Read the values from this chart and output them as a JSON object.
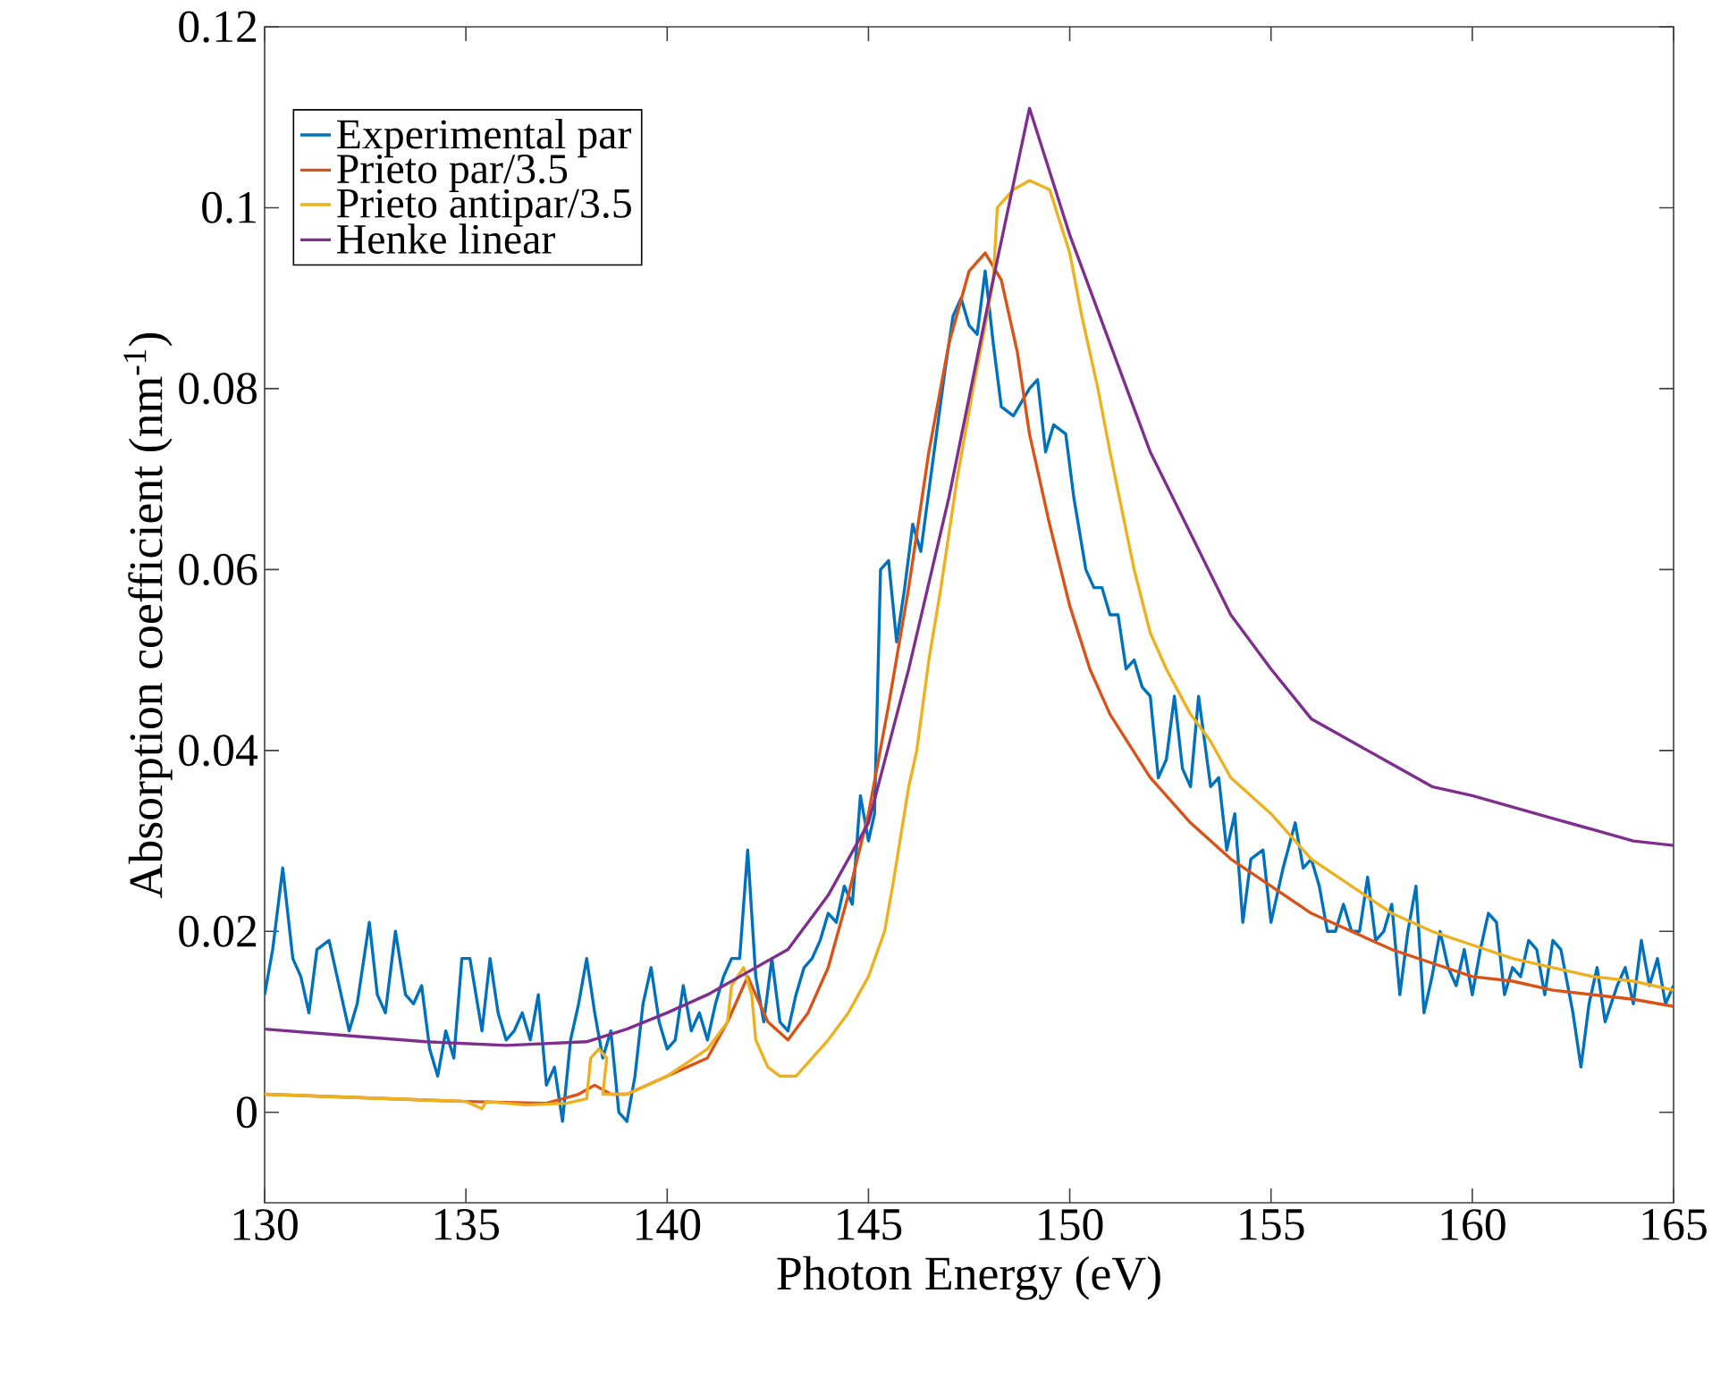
{
  "chart_data": {
    "type": "line",
    "xlabel": "Photon Energy (eV)",
    "ylabel": "Absorption coefficient (nm$^{-1}$)",
    "xlim": [
      130,
      165
    ],
    "ylim": [
      -0.01,
      0.12
    ],
    "xticks": [
      130,
      135,
      140,
      145,
      150,
      155,
      160,
      165
    ],
    "yticks": [
      0,
      0.02,
      0.04,
      0.06,
      0.08,
      0.1,
      0.12
    ],
    "legend": "top left",
    "grid": false,
    "marker": "none",
    "line_style": "solid",
    "series": [
      {
        "name": "Experimental par",
        "color": "#0072bd",
        "x": [
          130.0,
          130.2,
          130.45,
          130.7,
          130.9,
          131.1,
          131.3,
          131.6,
          131.9,
          132.1,
          132.3,
          132.6,
          132.8,
          133.0,
          133.25,
          133.5,
          133.7,
          133.9,
          134.1,
          134.3,
          134.5,
          134.7,
          134.9,
          135.1,
          135.4,
          135.6,
          135.8,
          136.0,
          136.2,
          136.4,
          136.6,
          136.8,
          137.0,
          137.2,
          137.4,
          137.6,
          137.8,
          138.0,
          138.2,
          138.4,
          138.6,
          138.8,
          139.0,
          139.2,
          139.4,
          139.6,
          139.8,
          140.0,
          140.2,
          140.4,
          140.6,
          140.8,
          141.0,
          141.2,
          141.4,
          141.6,
          141.8,
          142.0,
          142.2,
          142.4,
          142.6,
          142.8,
          143.0,
          143.2,
          143.4,
          143.6,
          143.8,
          144.0,
          144.2,
          144.4,
          144.6,
          144.8,
          145.0,
          145.15,
          145.3,
          145.5,
          145.7,
          145.9,
          146.1,
          146.3,
          146.6,
          146.9,
          147.1,
          147.3,
          147.5,
          147.7,
          147.9,
          148.1,
          148.3,
          148.6,
          149.0,
          149.2,
          149.4,
          149.6,
          149.9,
          150.1,
          150.4,
          150.6,
          150.8,
          151.0,
          151.2,
          151.4,
          151.6,
          151.8,
          152.0,
          152.2,
          152.4,
          152.6,
          152.8,
          153.0,
          153.2,
          153.5,
          153.7,
          153.9,
          154.1,
          154.3,
          154.5,
          154.8,
          155.0,
          155.3,
          155.6,
          155.8,
          156.0,
          156.2,
          156.4,
          156.6,
          156.8,
          157.0,
          157.2,
          157.4,
          157.6,
          157.8,
          158.0,
          158.2,
          158.4,
          158.6,
          158.8,
          159.0,
          159.2,
          159.4,
          159.6,
          159.8,
          160.0,
          160.2,
          160.4,
          160.6,
          160.8,
          161.0,
          161.2,
          161.4,
          161.6,
          161.8,
          162.0,
          162.2,
          162.5,
          162.7,
          162.9,
          163.1,
          163.3,
          163.6,
          163.8,
          164.0,
          164.2,
          164.4,
          164.6,
          164.8,
          165.0
        ],
        "values": [
          0.013,
          0.018,
          0.027,
          0.017,
          0.015,
          0.011,
          0.018,
          0.019,
          0.013,
          0.009,
          0.012,
          0.021,
          0.013,
          0.011,
          0.02,
          0.013,
          0.012,
          0.014,
          0.007,
          0.004,
          0.009,
          0.006,
          0.017,
          0.017,
          0.009,
          0.017,
          0.011,
          0.008,
          0.009,
          0.011,
          0.008,
          0.013,
          0.003,
          0.005,
          -0.001,
          0.008,
          0.012,
          0.017,
          0.011,
          0.006,
          0.009,
          0.0,
          -0.001,
          0.004,
          0.012,
          0.016,
          0.01,
          0.007,
          0.008,
          0.014,
          0.009,
          0.011,
          0.008,
          0.012,
          0.015,
          0.017,
          0.017,
          0.029,
          0.015,
          0.01,
          0.017,
          0.01,
          0.009,
          0.013,
          0.016,
          0.017,
          0.019,
          0.022,
          0.021,
          0.025,
          0.023,
          0.035,
          0.03,
          0.033,
          0.06,
          0.061,
          0.052,
          0.058,
          0.065,
          0.062,
          0.072,
          0.082,
          0.088,
          0.09,
          0.087,
          0.086,
          0.093,
          0.085,
          0.078,
          0.077,
          0.08,
          0.081,
          0.073,
          0.076,
          0.075,
          0.068,
          0.06,
          0.058,
          0.058,
          0.055,
          0.055,
          0.049,
          0.05,
          0.047,
          0.046,
          0.037,
          0.039,
          0.046,
          0.038,
          0.036,
          0.046,
          0.036,
          0.037,
          0.029,
          0.033,
          0.021,
          0.028,
          0.029,
          0.021,
          0.027,
          0.032,
          0.027,
          0.028,
          0.025,
          0.02,
          0.02,
          0.023,
          0.02,
          0.02,
          0.026,
          0.019,
          0.02,
          0.023,
          0.013,
          0.02,
          0.025,
          0.011,
          0.015,
          0.02,
          0.016,
          0.014,
          0.018,
          0.013,
          0.018,
          0.022,
          0.021,
          0.013,
          0.016,
          0.015,
          0.019,
          0.018,
          0.013,
          0.019,
          0.018,
          0.011,
          0.005,
          0.012,
          0.016,
          0.01,
          0.014,
          0.016,
          0.012,
          0.019,
          0.014,
          0.017,
          0.012,
          0.014
        ]
      },
      {
        "name": "Prieto par/3.5",
        "color": "#d95319",
        "x": [
          130,
          135,
          137,
          137.8,
          138.2,
          138.6,
          139,
          140,
          141,
          141.5,
          142,
          142.5,
          143,
          143.5,
          144,
          144.5,
          145,
          145.5,
          146,
          146.5,
          147,
          147.5,
          147.9,
          148.3,
          148.7,
          149,
          149.5,
          150,
          150.5,
          151,
          152,
          153,
          154,
          155,
          156,
          157,
          158,
          159,
          160,
          161,
          162,
          163,
          164,
          165
        ],
        "values": [
          0.002,
          0.0012,
          0.001,
          0.002,
          0.003,
          0.002,
          0.002,
          0.004,
          0.006,
          0.01,
          0.015,
          0.01,
          0.008,
          0.011,
          0.016,
          0.024,
          0.033,
          0.045,
          0.058,
          0.073,
          0.085,
          0.093,
          0.095,
          0.092,
          0.084,
          0.075,
          0.065,
          0.056,
          0.049,
          0.044,
          0.037,
          0.032,
          0.028,
          0.025,
          0.022,
          0.02,
          0.018,
          0.0165,
          0.015,
          0.0145,
          0.0135,
          0.013,
          0.0125,
          0.0117
        ]
      },
      {
        "name": "Prieto antipar/3.5",
        "color": "#edb120",
        "x": [
          130,
          135,
          135.4,
          135.5,
          136.5,
          137.5,
          138,
          138.1,
          138.3,
          138.5,
          138.4,
          139,
          140,
          141,
          141.5,
          141.6,
          141.9,
          142.1,
          142.2,
          142.5,
          142.8,
          143.2,
          143.6,
          144,
          144.5,
          145,
          145.4,
          145.6,
          146,
          146.2,
          146.5,
          146.8,
          147.2,
          147.6,
          147.9,
          148.1,
          148.2,
          148.6,
          149,
          149.5,
          150,
          150.3,
          150.7,
          151,
          151.6,
          152,
          152.4,
          153,
          153.5,
          154,
          155,
          156,
          157,
          158,
          159,
          160,
          161,
          162,
          163,
          164,
          165
        ],
        "values": [
          0.002,
          0.0012,
          0.0004,
          0.0012,
          0.0008,
          0.001,
          0.0015,
          0.006,
          0.007,
          0.006,
          0.002,
          0.002,
          0.004,
          0.007,
          0.01,
          0.014,
          0.016,
          0.013,
          0.008,
          0.005,
          0.004,
          0.004,
          0.006,
          0.008,
          0.011,
          0.015,
          0.02,
          0.025,
          0.036,
          0.04,
          0.05,
          0.058,
          0.07,
          0.08,
          0.087,
          0.092,
          0.1,
          0.102,
          0.103,
          0.102,
          0.095,
          0.088,
          0.08,
          0.073,
          0.06,
          0.053,
          0.049,
          0.044,
          0.041,
          0.037,
          0.033,
          0.028,
          0.025,
          0.022,
          0.02,
          0.0185,
          0.017,
          0.016,
          0.015,
          0.0145,
          0.0135
        ]
      },
      {
        "name": "Henke linear",
        "color": "#7e2f8e",
        "x": [
          130,
          132,
          134,
          136,
          138,
          139,
          140,
          141,
          142,
          143,
          144,
          145,
          146,
          147,
          148,
          149,
          150,
          151,
          152,
          153,
          154,
          155,
          156,
          157,
          158,
          159,
          160,
          162,
          164,
          165
        ],
        "values": [
          0.0092,
          0.0085,
          0.0078,
          0.0074,
          0.0078,
          0.0092,
          0.011,
          0.013,
          0.0155,
          0.018,
          0.024,
          0.032,
          0.049,
          0.068,
          0.09,
          0.111,
          0.097,
          0.085,
          0.073,
          0.064,
          0.055,
          0.049,
          0.0435,
          0.041,
          0.0385,
          0.036,
          0.035,
          0.0325,
          0.03,
          0.0295
        ]
      }
    ]
  }
}
